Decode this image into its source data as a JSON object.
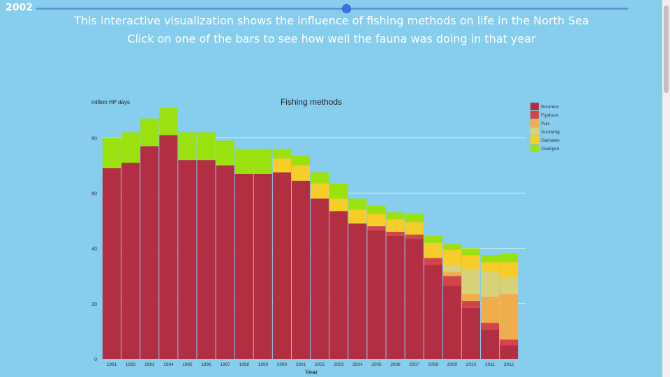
{
  "slider": {
    "year": "2002",
    "value": 2002,
    "min": 1991,
    "max": 2012
  },
  "headings": {
    "line1": "This interactive visualization shows the influence of fishing methods on life in the North Sea",
    "line2": "Click on one of the bars to see how well the fauna was doing in that year"
  },
  "colors": {
    "background": "#87cdee",
    "Boomkor": "#b22e42",
    "Flyshoot": "#d2464b",
    "Puls": "#f0ad4e",
    "Sumwing": "#d8d27a",
    "Garnalen": "#f7cd2a",
    "Overigen": "#9be10e"
  },
  "chart_data": {
    "type": "bar",
    "stacked": true,
    "title": "Fishing methods",
    "ylabel": "million HP days",
    "xlabel": "Year",
    "ylim": [
      0,
      92
    ],
    "yticks": [
      0,
      20,
      40,
      60,
      80
    ],
    "grid": "horizontal",
    "legend_position": "top-right",
    "categories": [
      "1991",
      "1992",
      "1993",
      "1994",
      "1995",
      "1996",
      "1997",
      "1998",
      "1999",
      "2000",
      "2001",
      "2002",
      "2003",
      "2004",
      "2005",
      "2006",
      "2007",
      "2008",
      "2009",
      "2010",
      "2011",
      "2012"
    ],
    "series": [
      {
        "name": "Boomkor",
        "values": [
          69,
          71,
          77,
          81,
          72,
          72,
          70,
          67,
          67,
          67.5,
          64.5,
          58,
          53.5,
          49,
          46.5,
          44.5,
          43.5,
          34,
          26.5,
          18.5,
          10.5,
          5
        ]
      },
      {
        "name": "Flyshoot",
        "values": [
          0,
          0,
          0,
          0,
          0,
          0,
          0,
          0,
          0,
          0,
          0,
          0,
          0,
          0,
          1.5,
          1.5,
          1.5,
          2.5,
          3.5,
          2.5,
          2.5,
          2
        ]
      },
      {
        "name": "Puls",
        "values": [
          0,
          0,
          0,
          0,
          0,
          0,
          0,
          0,
          0,
          0,
          0,
          0,
          0,
          0,
          0,
          0,
          0,
          0,
          1.5,
          2.5,
          9.5,
          16.5
        ]
      },
      {
        "name": "Sumwing",
        "values": [
          0,
          0,
          0,
          0,
          0,
          0,
          0,
          0,
          0,
          0,
          0,
          0,
          0,
          0,
          0,
          0,
          0,
          0,
          2.5,
          9,
          9,
          6
        ]
      },
      {
        "name": "Garnalen",
        "values": [
          0,
          0,
          0,
          0,
          0,
          0,
          0,
          0,
          0,
          5,
          5.5,
          5.5,
          4.5,
          5,
          4.5,
          4.5,
          4.5,
          5.5,
          5.5,
          5,
          3.5,
          5.5
        ]
      },
      {
        "name": "Overigen",
        "values": [
          11,
          11,
          10,
          10,
          10,
          10,
          9,
          9,
          9,
          3.5,
          3.5,
          4,
          5.5,
          4,
          3,
          2.5,
          3,
          2.5,
          2,
          2.5,
          2.5,
          3
        ]
      }
    ]
  }
}
